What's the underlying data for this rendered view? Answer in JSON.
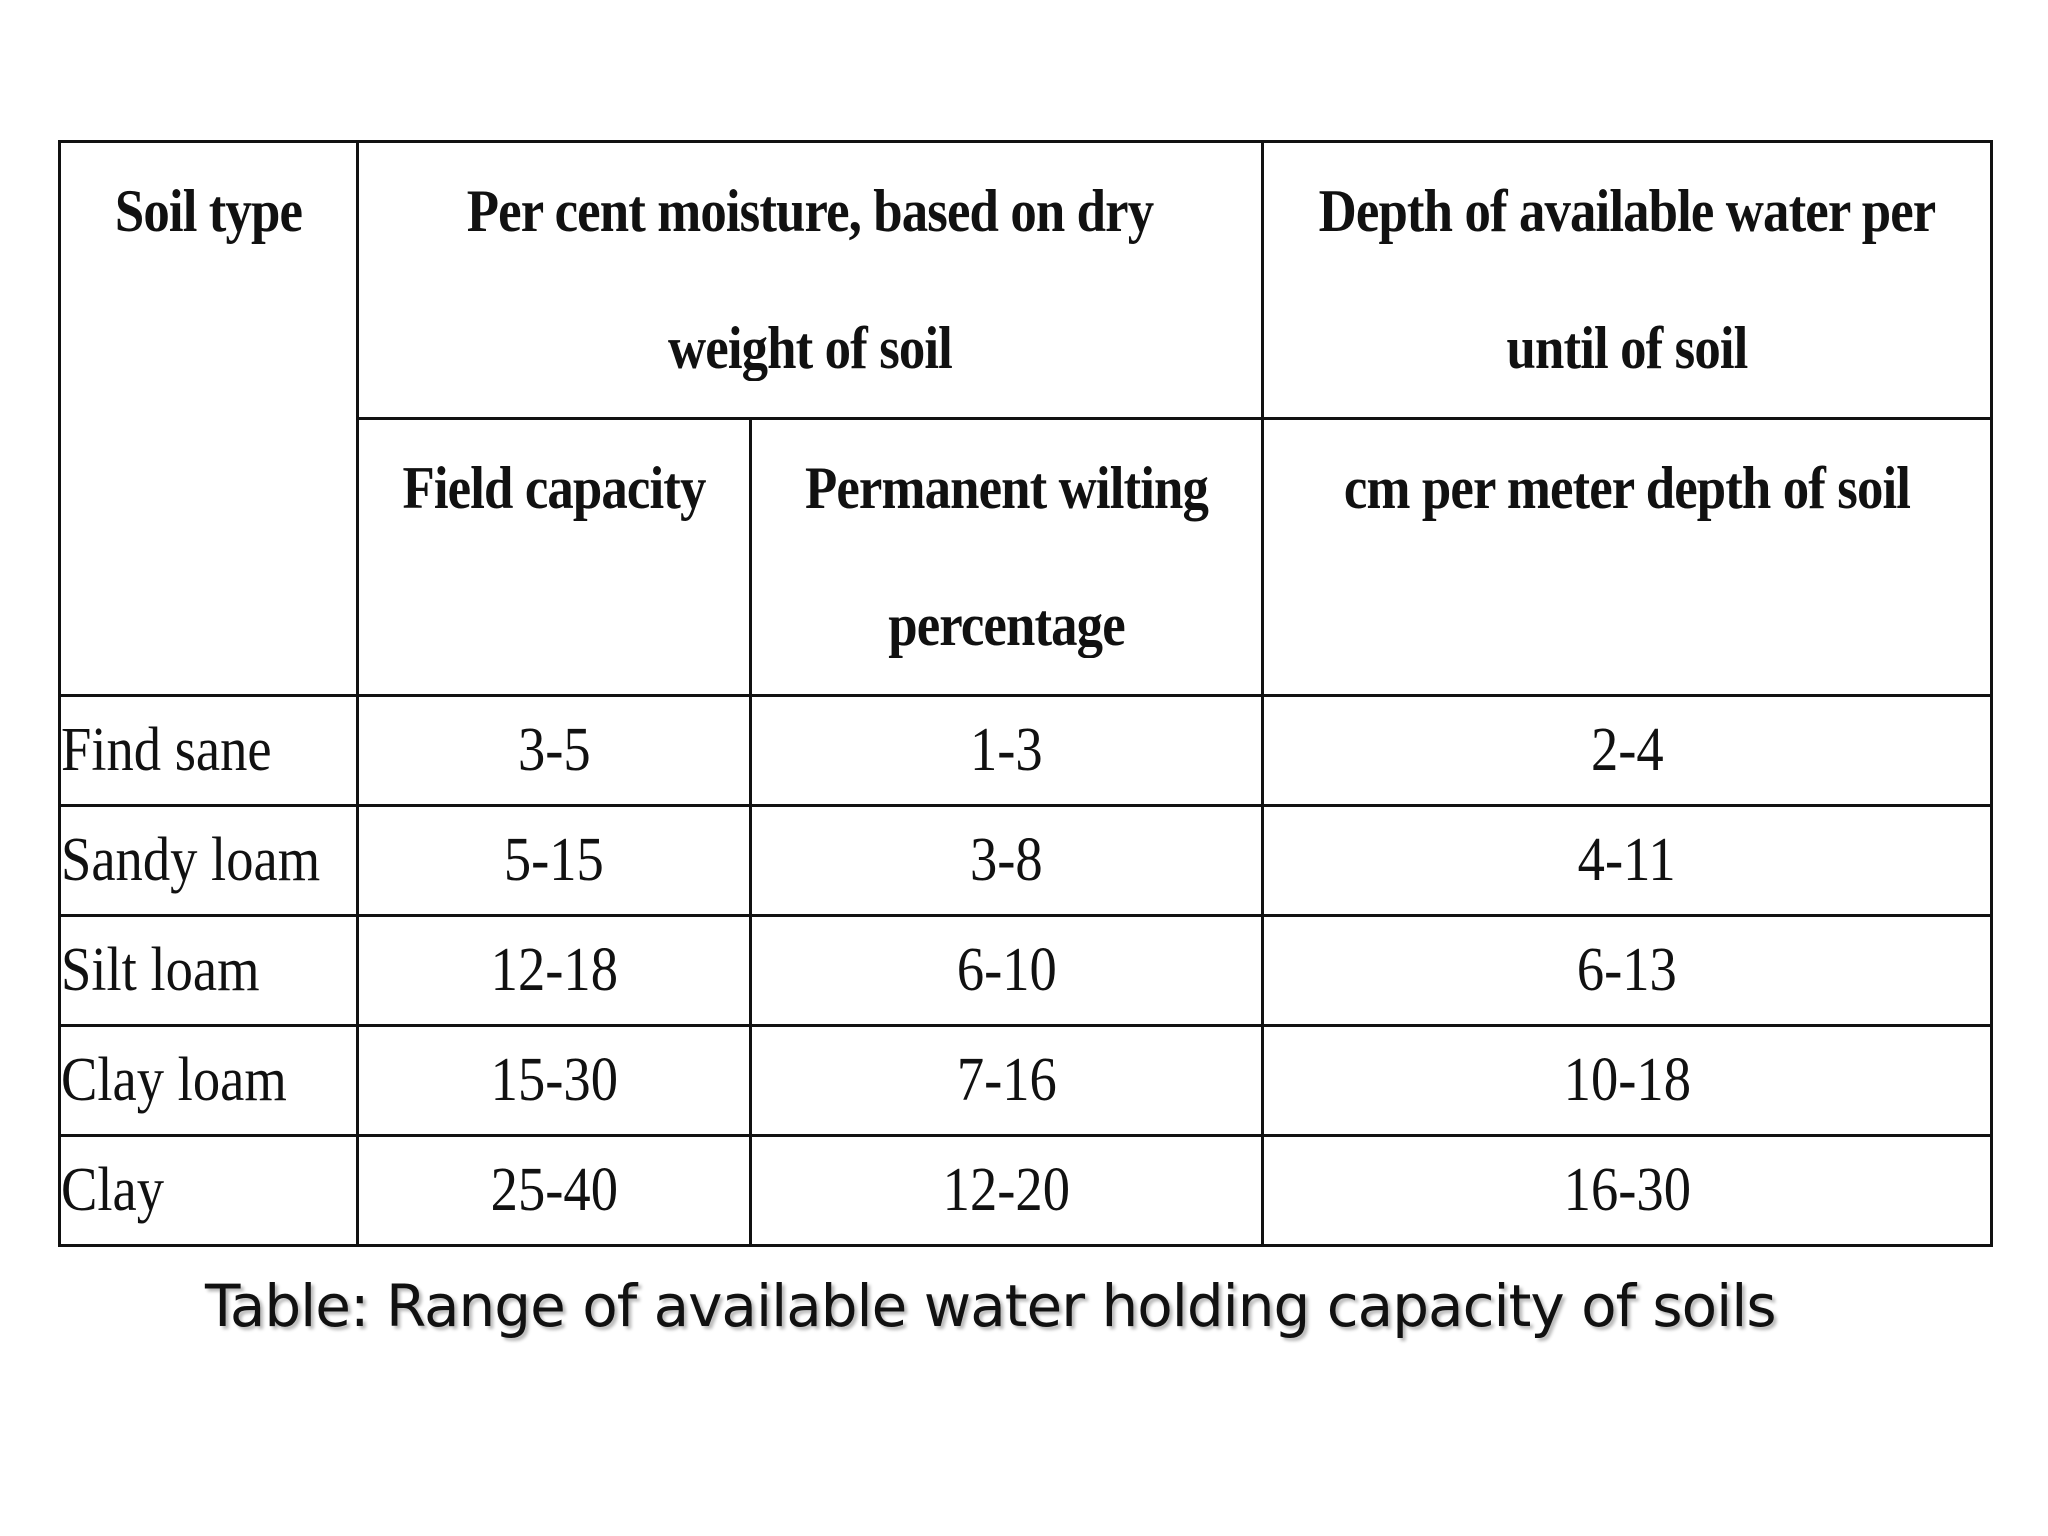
{
  "table": {
    "headers": {
      "soil_type": "Soil type",
      "moisture_group": "Per cent moisture, based on dry weight of soil",
      "depth_group": "Depth of available water per until of soil",
      "field_capacity": "Field capacity",
      "permanent_wilting": "Permanent wilting percentage",
      "depth_unit": "cm per meter depth of soil"
    },
    "rows": [
      {
        "soil": "Find sane",
        "field_capacity": "3-5",
        "wilting": "1-3",
        "depth": "2-4"
      },
      {
        "soil": "Sandy loam",
        "field_capacity": "5-15",
        "wilting": "3-8",
        "depth": "4-11"
      },
      {
        "soil": "Silt loam",
        "field_capacity": "12-18",
        "wilting": "6-10",
        "depth": "6-13"
      },
      {
        "soil": "Clay loam",
        "field_capacity": "15-30",
        "wilting": "7-16",
        "depth": "10-18"
      },
      {
        "soil": "Clay",
        "field_capacity": "25-40",
        "wilting": "12-20",
        "depth": "16-30"
      }
    ]
  },
  "caption": "Table: Range of available water holding capacity of soils"
}
